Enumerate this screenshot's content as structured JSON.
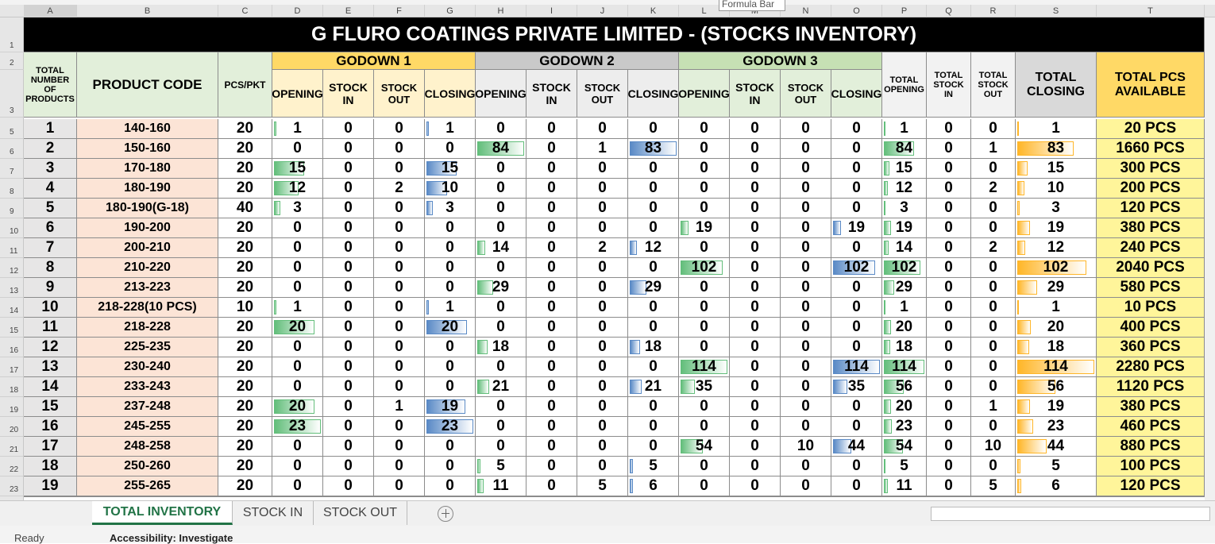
{
  "formula_bar_tooltip": "Formula Bar",
  "column_letters": [
    "A",
    "B",
    "C",
    "D",
    "E",
    "F",
    "G",
    "H",
    "I",
    "J",
    "K",
    "L",
    "M",
    "N",
    "O",
    "P",
    "Q",
    "R",
    "S",
    "T"
  ],
  "row_numbers": [
    1,
    2,
    3,
    5,
    6,
    7,
    8,
    9,
    10,
    11,
    12,
    13,
    14,
    15,
    16,
    17,
    18,
    19,
    20,
    21,
    22,
    23
  ],
  "title": "G FLURO COATINGS PRIVATE LIMITED - (STOCKS INVENTORY)",
  "headers": {
    "total_products": "TOTAL NUMBER OF PRODUCTS",
    "product_code": "PRODUCT CODE",
    "pcs_pkt": "PCS/PKT",
    "godowns": [
      {
        "name": "GODOWN 1",
        "columns": [
          "OPENING",
          "STOCK IN",
          "STOCK OUT",
          "CLOSING"
        ]
      },
      {
        "name": "GODOWN 2",
        "columns": [
          "OPENING",
          "STOCK IN",
          "STOCK OUT",
          "CLOSING"
        ]
      },
      {
        "name": "GODOWN 3",
        "columns": [
          "OPENING",
          "STOCK IN",
          "STOCK OUT",
          "CLOSING"
        ]
      }
    ],
    "totals": [
      "TOTAL OPENING",
      "TOTAL STOCK IN",
      "TOTAL STOCK OUT",
      "TOTAL CLOSING",
      "TOTAL PCS AVAILABLE"
    ]
  },
  "data_bars": {
    "D": "#63be7b",
    "G": "#5a8ac6",
    "H": "#63be7b",
    "K": "#5a8ac6",
    "L": "#63be7b",
    "O": "#5a8ac6",
    "P": "#63be7b",
    "S": "#ffb628"
  },
  "table": {
    "rows": [
      [
        1,
        "140-160",
        20,
        1,
        0,
        0,
        1,
        0,
        0,
        0,
        0,
        0,
        0,
        0,
        0,
        1,
        0,
        0,
        1,
        "20 PCS"
      ],
      [
        2,
        "150-160",
        20,
        0,
        0,
        0,
        0,
        84,
        0,
        1,
        83,
        0,
        0,
        0,
        0,
        84,
        0,
        1,
        83,
        "1660 PCS"
      ],
      [
        3,
        "170-180",
        20,
        15,
        0,
        0,
        15,
        0,
        0,
        0,
        0,
        0,
        0,
        0,
        0,
        15,
        0,
        0,
        15,
        "300 PCS"
      ],
      [
        4,
        "180-190",
        20,
        12,
        0,
        2,
        10,
        0,
        0,
        0,
        0,
        0,
        0,
        0,
        0,
        12,
        0,
        2,
        10,
        "200 PCS"
      ],
      [
        5,
        "180-190(G-18)",
        40,
        3,
        0,
        0,
        3,
        0,
        0,
        0,
        0,
        0,
        0,
        0,
        0,
        3,
        0,
        0,
        3,
        "120 PCS"
      ],
      [
        6,
        "190-200",
        20,
        0,
        0,
        0,
        0,
        0,
        0,
        0,
        0,
        19,
        0,
        0,
        19,
        19,
        0,
        0,
        19,
        "380 PCS"
      ],
      [
        7,
        "200-210",
        20,
        0,
        0,
        0,
        0,
        14,
        0,
        2,
        12,
        0,
        0,
        0,
        0,
        14,
        0,
        2,
        12,
        "240 PCS"
      ],
      [
        8,
        "210-220",
        20,
        0,
        0,
        0,
        0,
        0,
        0,
        0,
        0,
        102,
        0,
        0,
        102,
        102,
        0,
        0,
        102,
        "2040 PCS"
      ],
      [
        9,
        "213-223",
        20,
        0,
        0,
        0,
        0,
        29,
        0,
        0,
        29,
        0,
        0,
        0,
        0,
        29,
        0,
        0,
        29,
        "580 PCS"
      ],
      [
        10,
        "218-228(10 PCS)",
        10,
        1,
        0,
        0,
        1,
        0,
        0,
        0,
        0,
        0,
        0,
        0,
        0,
        1,
        0,
        0,
        1,
        "10 PCS"
      ],
      [
        11,
        "218-228",
        20,
        20,
        0,
        0,
        20,
        0,
        0,
        0,
        0,
        0,
        0,
        0,
        0,
        20,
        0,
        0,
        20,
        "400 PCS"
      ],
      [
        12,
        "225-235",
        20,
        0,
        0,
        0,
        0,
        18,
        0,
        0,
        18,
        0,
        0,
        0,
        0,
        18,
        0,
        0,
        18,
        "360 PCS"
      ],
      [
        13,
        "230-240",
        20,
        0,
        0,
        0,
        0,
        0,
        0,
        0,
        0,
        114,
        0,
        0,
        114,
        114,
        0,
        0,
        114,
        "2280 PCS"
      ],
      [
        14,
        "233-243",
        20,
        0,
        0,
        0,
        0,
        21,
        0,
        0,
        21,
        35,
        0,
        0,
        35,
        56,
        0,
        0,
        56,
        "1120 PCS"
      ],
      [
        15,
        "237-248",
        20,
        20,
        0,
        1,
        19,
        0,
        0,
        0,
        0,
        0,
        0,
        0,
        0,
        20,
        0,
        1,
        19,
        "380 PCS"
      ],
      [
        16,
        "245-255",
        20,
        23,
        0,
        0,
        23,
        0,
        0,
        0,
        0,
        0,
        0,
        0,
        0,
        23,
        0,
        0,
        23,
        "460 PCS"
      ],
      [
        17,
        "248-258",
        20,
        0,
        0,
        0,
        0,
        0,
        0,
        0,
        0,
        54,
        0,
        10,
        44,
        54,
        0,
        10,
        44,
        "880 PCS"
      ],
      [
        18,
        "250-260",
        20,
        0,
        0,
        0,
        0,
        5,
        0,
        0,
        5,
        0,
        0,
        0,
        0,
        5,
        0,
        0,
        5,
        "100 PCS"
      ],
      [
        19,
        "255-265",
        20,
        0,
        0,
        0,
        0,
        11,
        0,
        5,
        6,
        0,
        0,
        0,
        0,
        11,
        0,
        5,
        6,
        "120 PCS"
      ]
    ]
  },
  "sheet_tabs": [
    "TOTAL INVENTORY",
    "STOCK IN",
    "STOCK OUT"
  ],
  "status": {
    "mode": "Ready",
    "accessibility": "Accessibility: Investigate"
  }
}
